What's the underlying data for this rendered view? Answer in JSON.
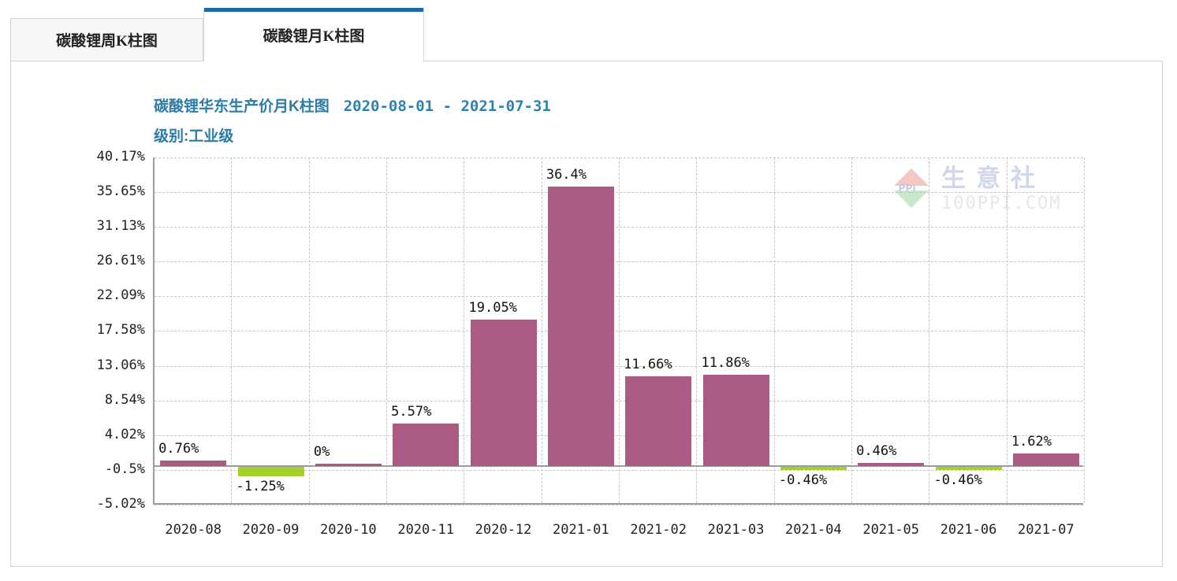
{
  "tabs": [
    {
      "label": "碳酸锂周K柱图",
      "active": false
    },
    {
      "label": "碳酸锂月K柱图",
      "active": true
    }
  ],
  "header": {
    "title": "碳酸锂华东生产价月K柱图",
    "date_range": "2020-08-01 - 2021-07-31",
    "subtitle": "级别:工业级"
  },
  "watermark": {
    "logo": "ppi-up-down-triangles-logo",
    "logo_text": "PPI",
    "brand": "生意社",
    "site": "100PPI.COM"
  },
  "chart_data": {
    "type": "bar",
    "title": "碳酸锂华东生产价月K柱图 2020-08-01 - 2021-07-31",
    "subtitle": "级别:工业级",
    "xlabel": "",
    "ylabel": "",
    "categories": [
      "2020-08",
      "2020-09",
      "2020-10",
      "2020-11",
      "2020-12",
      "2021-01",
      "2021-02",
      "2021-03",
      "2021-04",
      "2021-05",
      "2021-06",
      "2021-07"
    ],
    "values": [
      0.76,
      -1.25,
      0,
      5.57,
      19.05,
      36.4,
      11.66,
      11.86,
      -0.46,
      0.46,
      -0.46,
      1.62
    ],
    "value_labels": [
      "0.76%",
      "-1.25%",
      "0%",
      "5.57%",
      "19.05%",
      "36.4%",
      "11.66%",
      "11.86%",
      "-0.46%",
      "0.46%",
      "-0.46%",
      "1.62%"
    ],
    "y_ticks": [
      40.17,
      35.65,
      31.13,
      26.61,
      22.09,
      17.58,
      13.06,
      8.54,
      4.02,
      -0.5,
      -5.02
    ],
    "y_tick_labels": [
      "40.17%",
      "35.65%",
      "31.13%",
      "26.61%",
      "22.09%",
      "17.58%",
      "13.06%",
      "8.54%",
      "4.02%",
      "-0.5%",
      "-5.02%"
    ],
    "ylim": [
      -5.02,
      40.17
    ],
    "grid": true,
    "legend": "none",
    "colors": {
      "positive_bar": "#ab5a84",
      "negative_bar": "#a4d02c",
      "grid": "#c6c6c6",
      "axis": "#9b9b9b",
      "tab_accent": "#1a68ad",
      "title": "#2b7ca6"
    }
  }
}
